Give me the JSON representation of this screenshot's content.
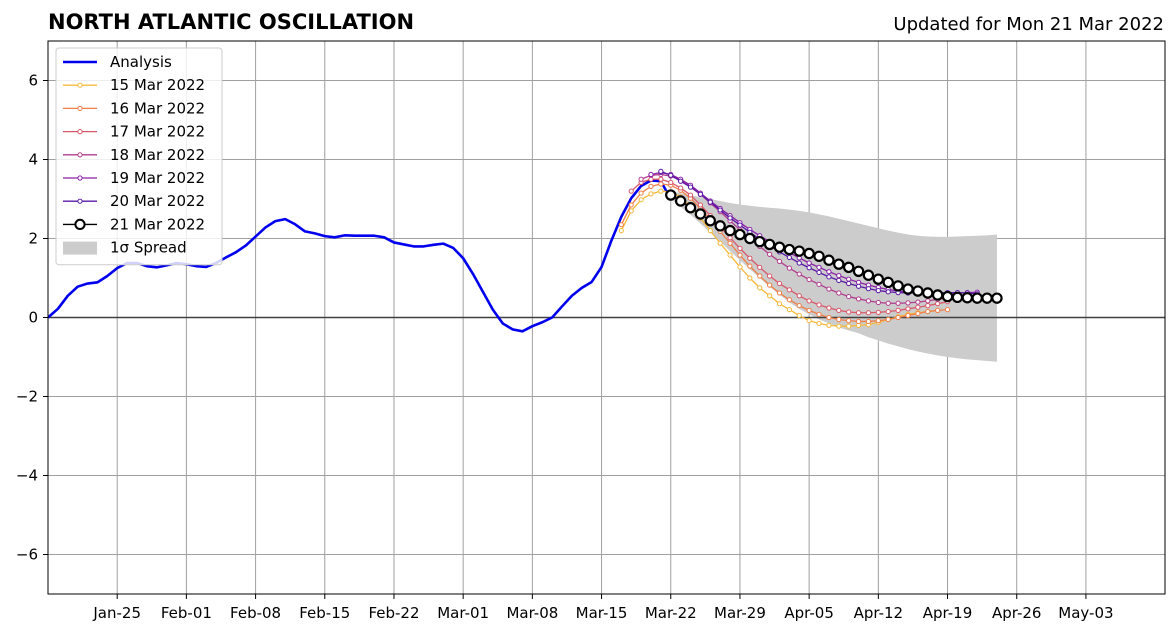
{
  "header": {
    "title": "NORTH ATLANTIC OSCILLATION",
    "updated": "Updated for Mon 21 Mar 2022"
  },
  "chart_data": {
    "type": "line",
    "title": "NORTH ATLANTIC OSCILLATION",
    "xlabel": "",
    "ylabel": "",
    "xlim": [
      "2022-01-18",
      "2022-05-11"
    ],
    "ylim": [
      -7,
      7
    ],
    "grid": true,
    "legend_position": "top-left",
    "x_ticks": [
      {
        "date": "2022-01-25",
        "label": "Jan-25"
      },
      {
        "date": "2022-02-01",
        "label": "Feb-01"
      },
      {
        "date": "2022-02-08",
        "label": "Feb-08"
      },
      {
        "date": "2022-02-15",
        "label": "Feb-15"
      },
      {
        "date": "2022-02-22",
        "label": "Feb-22"
      },
      {
        "date": "2022-03-01",
        "label": "Mar-01"
      },
      {
        "date": "2022-03-08",
        "label": "Mar-08"
      },
      {
        "date": "2022-03-15",
        "label": "Mar-15"
      },
      {
        "date": "2022-03-22",
        "label": "Mar-22"
      },
      {
        "date": "2022-03-29",
        "label": "Mar-29"
      },
      {
        "date": "2022-04-05",
        "label": "Apr-05"
      },
      {
        "date": "2022-04-12",
        "label": "Apr-12"
      },
      {
        "date": "2022-04-19",
        "label": "Apr-19"
      },
      {
        "date": "2022-04-26",
        "label": "Apr-26"
      },
      {
        "date": "2022-05-03",
        "label": "May-03"
      }
    ],
    "y_ticks": [
      {
        "value": -6,
        "label": "−6"
      },
      {
        "value": -4,
        "label": "−4"
      },
      {
        "value": -2,
        "label": "−2"
      },
      {
        "value": 0,
        "label": "0"
      },
      {
        "value": 2,
        "label": "2"
      },
      {
        "value": 4,
        "label": "4"
      },
      {
        "value": 6,
        "label": "6"
      }
    ],
    "series": [
      {
        "name": "Analysis",
        "color": "#0000ee",
        "style": "line",
        "points": [
          [
            "2022-01-18",
            0.0
          ],
          [
            "2022-01-19",
            0.22
          ],
          [
            "2022-01-20",
            0.55
          ],
          [
            "2022-01-21",
            0.78
          ],
          [
            "2022-01-22",
            0.86
          ],
          [
            "2022-01-23",
            0.89
          ],
          [
            "2022-01-24",
            1.05
          ],
          [
            "2022-01-25",
            1.25
          ],
          [
            "2022-01-26",
            1.38
          ],
          [
            "2022-01-27",
            1.38
          ],
          [
            "2022-01-28",
            1.3
          ],
          [
            "2022-01-29",
            1.27
          ],
          [
            "2022-01-30",
            1.32
          ],
          [
            "2022-01-31",
            1.38
          ],
          [
            "2022-02-01",
            1.35
          ],
          [
            "2022-02-02",
            1.3
          ],
          [
            "2022-02-03",
            1.28
          ],
          [
            "2022-02-04",
            1.38
          ],
          [
            "2022-02-05",
            1.52
          ],
          [
            "2022-02-06",
            1.65
          ],
          [
            "2022-02-07",
            1.82
          ],
          [
            "2022-02-08",
            2.05
          ],
          [
            "2022-02-09",
            2.28
          ],
          [
            "2022-02-10",
            2.44
          ],
          [
            "2022-02-11",
            2.49
          ],
          [
            "2022-02-12",
            2.36
          ],
          [
            "2022-02-13",
            2.18
          ],
          [
            "2022-02-14",
            2.13
          ],
          [
            "2022-02-15",
            2.06
          ],
          [
            "2022-02-16",
            2.03
          ],
          [
            "2022-02-17",
            2.08
          ],
          [
            "2022-02-18",
            2.07
          ],
          [
            "2022-02-19",
            2.07
          ],
          [
            "2022-02-20",
            2.07
          ],
          [
            "2022-02-21",
            2.03
          ],
          [
            "2022-02-22",
            1.9
          ],
          [
            "2022-02-23",
            1.85
          ],
          [
            "2022-02-24",
            1.8
          ],
          [
            "2022-02-25",
            1.8
          ],
          [
            "2022-02-26",
            1.84
          ],
          [
            "2022-02-27",
            1.87
          ],
          [
            "2022-02-28",
            1.76
          ],
          [
            "2022-03-01",
            1.5
          ],
          [
            "2022-03-02",
            1.1
          ],
          [
            "2022-03-03",
            0.65
          ],
          [
            "2022-03-04",
            0.2
          ],
          [
            "2022-03-05",
            -0.15
          ],
          [
            "2022-03-06",
            -0.3
          ],
          [
            "2022-03-07",
            -0.35
          ],
          [
            "2022-03-08",
            -0.22
          ],
          [
            "2022-03-09",
            -0.12
          ],
          [
            "2022-03-10",
            0.0
          ],
          [
            "2022-03-11",
            0.28
          ],
          [
            "2022-03-12",
            0.55
          ],
          [
            "2022-03-13",
            0.75
          ],
          [
            "2022-03-14",
            0.9
          ],
          [
            "2022-03-15",
            1.28
          ],
          [
            "2022-03-16",
            1.95
          ],
          [
            "2022-03-17",
            2.55
          ],
          [
            "2022-03-18",
            3.02
          ],
          [
            "2022-03-19",
            3.33
          ],
          [
            "2022-03-20",
            3.47
          ],
          [
            "2022-03-21",
            3.45
          ],
          [
            "2022-03-22",
            3.0
          ]
        ]
      },
      {
        "name": "15 Mar 2022",
        "color": "#f5b93b",
        "style": "dots",
        "start": "2022-03-17",
        "values": [
          2.2,
          2.7,
          2.98,
          3.13,
          3.2,
          3.18,
          3.05,
          2.82,
          2.52,
          2.2,
          1.88,
          1.58,
          1.28,
          1.0,
          0.75,
          0.55,
          0.35,
          0.2,
          0.05,
          -0.08,
          -0.15,
          -0.2,
          -0.22,
          -0.22,
          -0.2,
          -0.18,
          -0.12,
          -0.05,
          0.02,
          0.08,
          0.12,
          0.15,
          0.18
        ]
      },
      {
        "name": "16 Mar 2022",
        "color": "#ef7e48",
        "style": "dots",
        "start": "2022-03-17",
        "values": [
          2.35,
          2.85,
          3.15,
          3.32,
          3.38,
          3.35,
          3.22,
          3.02,
          2.76,
          2.48,
          2.18,
          1.88,
          1.58,
          1.3,
          1.05,
          0.82,
          0.62,
          0.45,
          0.3,
          0.18,
          0.08,
          0.0,
          -0.05,
          -0.08,
          -0.1,
          -0.1,
          -0.08,
          -0.05,
          0.0,
          0.05,
          0.1,
          0.15,
          0.18,
          0.2
        ]
      },
      {
        "name": "17 Mar 2022",
        "color": "#d9586a",
        "style": "dots",
        "start": "2022-03-18",
        "values": [
          3.2,
          3.42,
          3.5,
          3.5,
          3.42,
          3.28,
          3.1,
          2.85,
          2.58,
          2.3,
          2.02,
          1.75,
          1.5,
          1.27,
          1.05,
          0.86,
          0.7,
          0.55,
          0.42,
          0.32,
          0.24,
          0.18,
          0.14,
          0.12,
          0.12,
          0.13,
          0.15,
          0.18,
          0.22,
          0.26,
          0.3,
          0.35,
          0.4
        ]
      },
      {
        "name": "18 Mar 2022",
        "color": "#b13d8d",
        "style": "dots",
        "start": "2022-03-19",
        "values": [
          3.5,
          3.6,
          3.62,
          3.58,
          3.48,
          3.32,
          3.12,
          2.9,
          2.68,
          2.45,
          2.22,
          2.0,
          1.8,
          1.6,
          1.42,
          1.25,
          1.1,
          0.96,
          0.84,
          0.72,
          0.62,
          0.53,
          0.47,
          0.42,
          0.38,
          0.36,
          0.36,
          0.37,
          0.39,
          0.42,
          0.46,
          0.5,
          0.54,
          0.58
        ]
      },
      {
        "name": "19 Mar 2022",
        "color": "#8a20a8",
        "style": "dots",
        "start": "2022-03-20",
        "values": [
          3.62,
          3.67,
          3.62,
          3.5,
          3.35,
          3.15,
          2.95,
          2.76,
          2.58,
          2.4,
          2.23,
          2.07,
          1.92,
          1.78,
          1.64,
          1.51,
          1.38,
          1.27,
          1.16,
          1.06,
          0.97,
          0.89,
          0.82,
          0.76,
          0.71,
          0.67,
          0.64,
          0.62,
          0.61,
          0.6,
          0.61,
          0.62,
          0.63,
          0.64
        ]
      },
      {
        "name": "20 Mar 2022",
        "color": "#5a18a6",
        "style": "dots",
        "start": "2022-03-21",
        "values": [
          3.7,
          3.6,
          3.45,
          3.3,
          3.12,
          2.92,
          2.72,
          2.52,
          2.34,
          2.16,
          1.98,
          1.82,
          1.66,
          1.52,
          1.38,
          1.26,
          1.14,
          1.03,
          0.94,
          0.86,
          0.79,
          0.73,
          0.68,
          0.65,
          0.63,
          0.62,
          0.62,
          0.62,
          0.62,
          0.63,
          0.63,
          0.62,
          0.6
        ]
      },
      {
        "name": "21 Mar 2022",
        "color": "#000000",
        "style": "circles",
        "start": "2022-03-22",
        "values": [
          3.1,
          2.95,
          2.78,
          2.62,
          2.45,
          2.32,
          2.2,
          2.1,
          2.0,
          1.92,
          1.85,
          1.78,
          1.72,
          1.68,
          1.62,
          1.55,
          1.45,
          1.35,
          1.27,
          1.17,
          1.07,
          0.97,
          0.89,
          0.8,
          0.72,
          0.67,
          0.62,
          0.57,
          0.53,
          0.51,
          0.5,
          0.49,
          0.49,
          0.49
        ]
      }
    ],
    "spread": {
      "name": "1σ Spread",
      "color": "#cccccc",
      "start": "2022-03-22",
      "upper": [
        3.2,
        3.15,
        3.1,
        3.05,
        3.0,
        2.95,
        2.9,
        2.86,
        2.83,
        2.8,
        2.78,
        2.76,
        2.73,
        2.7,
        2.66,
        2.61,
        2.56,
        2.5,
        2.44,
        2.38,
        2.32,
        2.26,
        2.2,
        2.15,
        2.1,
        2.07,
        2.05,
        2.04,
        2.04,
        2.05,
        2.06,
        2.07,
        2.08,
        2.1
      ],
      "lower": [
        3.0,
        2.8,
        2.6,
        2.38,
        2.15,
        1.92,
        1.68,
        1.45,
        1.22,
        1.0,
        0.78,
        0.58,
        0.38,
        0.22,
        0.08,
        -0.05,
        -0.15,
        -0.25,
        -0.33,
        -0.4,
        -0.5,
        -0.58,
        -0.66,
        -0.73,
        -0.8,
        -0.86,
        -0.91,
        -0.96,
        -1.0,
        -1.03,
        -1.06,
        -1.08,
        -1.1,
        -1.12
      ]
    }
  },
  "legend": {
    "entries": [
      {
        "label": "Analysis",
        "color": "#0000ee",
        "type": "line"
      },
      {
        "label": "15 Mar 2022",
        "color": "#f5b93b",
        "type": "dots"
      },
      {
        "label": "16 Mar 2022",
        "color": "#ef7e48",
        "type": "dots"
      },
      {
        "label": "17 Mar 2022",
        "color": "#d9586a",
        "type": "dots"
      },
      {
        "label": "18 Mar 2022",
        "color": "#b13d8d",
        "type": "dots"
      },
      {
        "label": "19 Mar 2022",
        "color": "#8a20a8",
        "type": "dots"
      },
      {
        "label": "20 Mar 2022",
        "color": "#5a18a6",
        "type": "dots"
      },
      {
        "label": "21 Mar 2022",
        "color": "#000000",
        "type": "circles"
      },
      {
        "label": "1σ Spread",
        "color": "#cccccc",
        "type": "patch"
      }
    ]
  }
}
